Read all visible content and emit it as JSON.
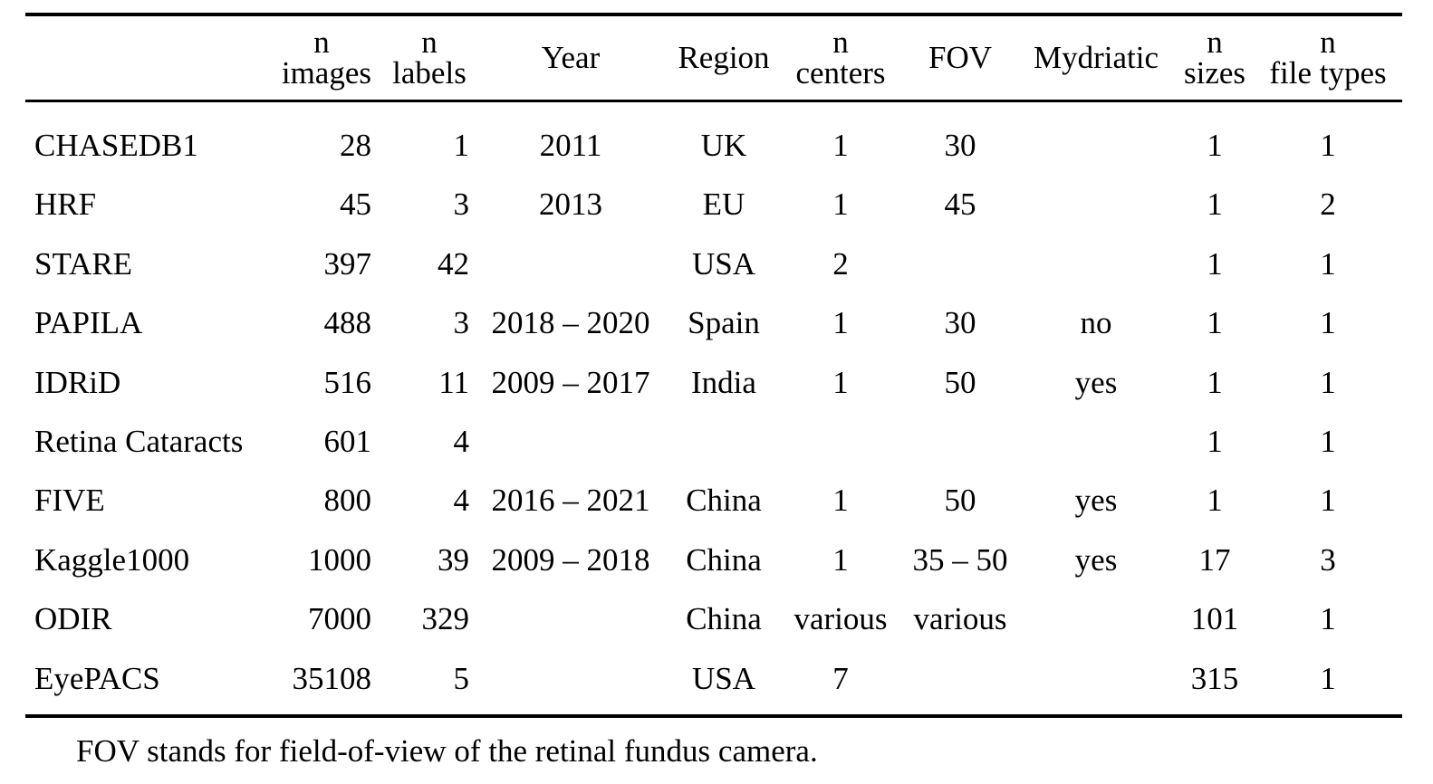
{
  "table": {
    "headers": [
      {
        "line1": "",
        "line2": ""
      },
      {
        "line1": "n",
        "line2": "images"
      },
      {
        "line1": "n",
        "line2": "labels"
      },
      {
        "line1": "",
        "line2": "Year"
      },
      {
        "line1": "",
        "line2": "Region"
      },
      {
        "line1": "n",
        "line2": "centers"
      },
      {
        "line1": "",
        "line2": "FOV"
      },
      {
        "line1": "",
        "line2": "Mydriatic"
      },
      {
        "line1": "n",
        "line2": "sizes"
      },
      {
        "line1": "n",
        "line2": "file types"
      }
    ],
    "rows": [
      {
        "name": "CHASEDB1",
        "images": "28",
        "labels": "1",
        "year": "2011",
        "region": "UK",
        "centers": "1",
        "fov": "30",
        "mydriatic": "",
        "sizes": "1",
        "file_types": "1"
      },
      {
        "name": "HRF",
        "images": "45",
        "labels": "3",
        "year": "2013",
        "region": "EU",
        "centers": "1",
        "fov": "45",
        "mydriatic": "",
        "sizes": "1",
        "file_types": "2"
      },
      {
        "name": "STARE",
        "images": "397",
        "labels": "42",
        "year": "",
        "region": "USA",
        "centers": "2",
        "fov": "",
        "mydriatic": "",
        "sizes": "1",
        "file_types": "1"
      },
      {
        "name": "PAPILA",
        "images": "488",
        "labels": "3",
        "year": "2018 – 2020",
        "region": "Spain",
        "centers": "1",
        "fov": "30",
        "mydriatic": "no",
        "sizes": "1",
        "file_types": "1"
      },
      {
        "name": "IDRiD",
        "images": "516",
        "labels": "11",
        "year": "2009 – 2017",
        "region": "India",
        "centers": "1",
        "fov": "50",
        "mydriatic": "yes",
        "sizes": "1",
        "file_types": "1"
      },
      {
        "name": "Retina Cataracts",
        "images": "601",
        "labels": "4",
        "year": "",
        "region": "",
        "centers": "",
        "fov": "",
        "mydriatic": "",
        "sizes": "1",
        "file_types": "1"
      },
      {
        "name": "FIVE",
        "images": "800",
        "labels": "4",
        "year": "2016 – 2021",
        "region": "China",
        "centers": "1",
        "fov": "50",
        "mydriatic": "yes",
        "sizes": "1",
        "file_types": "1"
      },
      {
        "name": "Kaggle1000",
        "images": "1000",
        "labels": "39",
        "year": "2009 – 2018",
        "region": "China",
        "centers": "1",
        "fov": "35 – 50",
        "mydriatic": "yes",
        "sizes": "17",
        "file_types": "3"
      },
      {
        "name": "ODIR",
        "images": "7000",
        "labels": "329",
        "year": "",
        "region": "China",
        "centers": "various",
        "fov": "various",
        "mydriatic": "",
        "sizes": "101",
        "file_types": "1"
      },
      {
        "name": "EyePACS",
        "images": "35108",
        "labels": "5",
        "year": "",
        "region": "USA",
        "centers": "7",
        "fov": "",
        "mydriatic": "",
        "sizes": "315",
        "file_types": "1"
      }
    ]
  },
  "footnote": "FOV stands for field-of-view of the retinal fundus camera."
}
